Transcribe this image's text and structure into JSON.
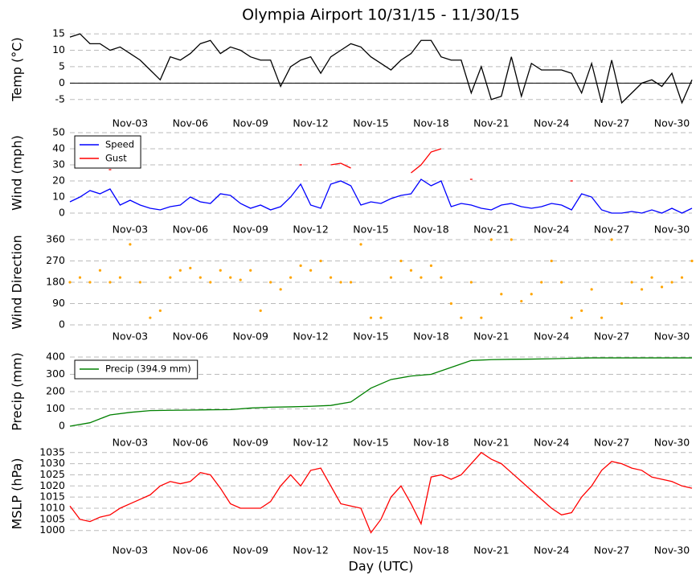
{
  "title": "Olympia Airport 10/31/15 - 11/30/15",
  "xlabel": "Day (UTC)",
  "chart_data": [
    {
      "type": "line",
      "ylabel": "Temp (°C)",
      "ylim": [
        -7.5,
        16
      ],
      "yticks": [
        -5,
        0,
        5,
        10,
        15
      ],
      "grid": true,
      "hline": 0,
      "xlim": [
        0,
        31
      ],
      "xticks": [
        {
          "value": 3,
          "label": "Nov-03"
        },
        {
          "value": 6,
          "label": "Nov-06"
        },
        {
          "value": 9,
          "label": "Nov-09"
        },
        {
          "value": 12,
          "label": "Nov-12"
        },
        {
          "value": 15,
          "label": "Nov-15"
        },
        {
          "value": 18,
          "label": "Nov-18"
        },
        {
          "value": 21,
          "label": "Nov-21"
        },
        {
          "value": 24,
          "label": "Nov-24"
        },
        {
          "value": 27,
          "label": "Nov-27"
        },
        {
          "value": 30,
          "label": "Nov-30"
        }
      ],
      "x": [
        0,
        0.5,
        1,
        1.5,
        2,
        2.5,
        3,
        3.5,
        4,
        4.5,
        5,
        5.5,
        6,
        6.5,
        7,
        7.5,
        8,
        8.5,
        9,
        9.5,
        10,
        10.5,
        11,
        11.5,
        12,
        12.5,
        13,
        13.5,
        14,
        14.5,
        15,
        15.5,
        16,
        16.5,
        17,
        17.5,
        18,
        18.5,
        19,
        19.5,
        20,
        20.5,
        21,
        21.5,
        22,
        22.5,
        23,
        23.5,
        24,
        24.5,
        25,
        25.5,
        26,
        26.5,
        27,
        27.5,
        28,
        28.5,
        29,
        29.5,
        30,
        30.5,
        31
      ],
      "series": [
        {
          "color": "#000000",
          "values": [
            14,
            15,
            12,
            12,
            10,
            11,
            9,
            7,
            4,
            1,
            8,
            7,
            9,
            12,
            13,
            9,
            11,
            10,
            8,
            7,
            7,
            -1,
            5,
            7,
            8,
            3,
            8,
            10,
            12,
            11,
            8,
            6,
            4,
            7,
            9,
            13,
            13,
            8,
            7,
            7,
            -3,
            5,
            -5,
            -4,
            8,
            -4,
            6,
            4,
            4,
            4,
            3,
            -3,
            6,
            -6,
            7,
            -6,
            -3,
            0,
            1,
            -1,
            3,
            -6,
            1
          ]
        }
      ]
    },
    {
      "type": "line",
      "ylabel": "Wind (mph)",
      "ylim": [
        0,
        50
      ],
      "yticks": [
        0,
        10,
        20,
        30,
        40,
        50
      ],
      "grid": true,
      "legend": "upper left",
      "xlim": [
        0,
        31
      ],
      "xticks": [
        {
          "value": 3,
          "label": "Nov-03"
        },
        {
          "value": 6,
          "label": "Nov-06"
        },
        {
          "value": 9,
          "label": "Nov-09"
        },
        {
          "value": 12,
          "label": "Nov-12"
        },
        {
          "value": 15,
          "label": "Nov-15"
        },
        {
          "value": 18,
          "label": "Nov-18"
        },
        {
          "value": 21,
          "label": "Nov-21"
        },
        {
          "value": 24,
          "label": "Nov-24"
        },
        {
          "value": 27,
          "label": "Nov-27"
        },
        {
          "value": 30,
          "label": "Nov-30"
        }
      ],
      "x": [
        0,
        0.5,
        1,
        1.5,
        2,
        2.5,
        3,
        3.5,
        4,
        4.5,
        5,
        5.5,
        6,
        6.5,
        7,
        7.5,
        8,
        8.5,
        9,
        9.5,
        10,
        10.5,
        11,
        11.5,
        12,
        12.5,
        13,
        13.5,
        14,
        14.5,
        15,
        15.5,
        16,
        16.5,
        17,
        17.5,
        18,
        18.5,
        19,
        19.5,
        20,
        20.5,
        21,
        21.5,
        22,
        22.5,
        23,
        23.5,
        24,
        24.5,
        25,
        25.5,
        26,
        26.5,
        27,
        27.5,
        28,
        28.5,
        29,
        29.5,
        30,
        30.5,
        31
      ],
      "series": [
        {
          "name": "Speed",
          "color": "#0000ff",
          "values": [
            7,
            10,
            14,
            12,
            15,
            5,
            8,
            5,
            3,
            2,
            4,
            5,
            10,
            7,
            6,
            12,
            11,
            6,
            3,
            5,
            2,
            4,
            10,
            18,
            5,
            3,
            18,
            20,
            17,
            5,
            7,
            6,
            9,
            11,
            12,
            21,
            17,
            20,
            4,
            6,
            5,
            3,
            2,
            5,
            6,
            4,
            3,
            4,
            6,
            5,
            2,
            12,
            10,
            2,
            0,
            0,
            1,
            0,
            2,
            0,
            3,
            0,
            3
          ]
        },
        {
          "name": "Gust",
          "color": "#ff0000",
          "values": [
            null,
            null,
            null,
            null,
            27,
            null,
            null,
            null,
            null,
            null,
            null,
            null,
            null,
            null,
            null,
            null,
            null,
            null,
            null,
            null,
            null,
            null,
            null,
            30,
            null,
            null,
            30,
            31,
            28,
            null,
            null,
            null,
            null,
            null,
            25,
            30,
            38,
            40,
            null,
            null,
            21,
            null,
            null,
            null,
            null,
            null,
            null,
            null,
            null,
            null,
            20,
            null,
            null,
            null,
            null,
            null,
            null,
            null,
            null,
            null,
            null,
            null,
            null
          ]
        }
      ]
    },
    {
      "type": "scatter",
      "ylabel": "Wind Direction",
      "ylim": [
        0,
        360
      ],
      "yticks": [
        0,
        90,
        180,
        270,
        360
      ],
      "grid": true,
      "xlim": [
        0,
        31
      ],
      "xticks": [
        {
          "value": 3,
          "label": "Nov-03"
        },
        {
          "value": 6,
          "label": "Nov-06"
        },
        {
          "value": 9,
          "label": "Nov-09"
        },
        {
          "value": 12,
          "label": "Nov-12"
        },
        {
          "value": 15,
          "label": "Nov-15"
        },
        {
          "value": 18,
          "label": "Nov-18"
        },
        {
          "value": 21,
          "label": "Nov-21"
        },
        {
          "value": 24,
          "label": "Nov-24"
        },
        {
          "value": 27,
          "label": "Nov-27"
        },
        {
          "value": 30,
          "label": "Nov-30"
        }
      ],
      "x": [
        0,
        0.5,
        1,
        1.5,
        2,
        2.5,
        3,
        3.5,
        4,
        4.5,
        5,
        5.5,
        6,
        6.5,
        7,
        7.5,
        8,
        8.5,
        9,
        9.5,
        10,
        10.5,
        11,
        11.5,
        12,
        12.5,
        13,
        13.5,
        14,
        14.5,
        15,
        15.5,
        16,
        16.5,
        17,
        17.5,
        18,
        18.5,
        19,
        19.5,
        20,
        20.5,
        21,
        21.5,
        22,
        22.5,
        23,
        23.5,
        24,
        24.5,
        25,
        25.5,
        26,
        26.5,
        27,
        27.5,
        28,
        28.5,
        29,
        29.5,
        30,
        30.5,
        31
      ],
      "series": [
        {
          "color": "#ffa500",
          "values": [
            180,
            200,
            180,
            230,
            180,
            200,
            340,
            180,
            30,
            60,
            200,
            230,
            240,
            200,
            180,
            230,
            200,
            190,
            230,
            60,
            180,
            150,
            200,
            250,
            230,
            270,
            200,
            180,
            180,
            340,
            30,
            30,
            200,
            270,
            230,
            200,
            250,
            200,
            90,
            30,
            180,
            30,
            360,
            130,
            360,
            100,
            130,
            180,
            270,
            180,
            30,
            60,
            150,
            30,
            360,
            90,
            180,
            150,
            200,
            160,
            180,
            200,
            270
          ]
        }
      ]
    },
    {
      "type": "line",
      "ylabel": "Precip (mm)",
      "ylim": [
        0,
        400
      ],
      "yticks": [
        0,
        100,
        200,
        300,
        400
      ],
      "grid": true,
      "legend": "upper left",
      "xlim": [
        0,
        31
      ],
      "xticks": [
        {
          "value": 3,
          "label": "Nov-03"
        },
        {
          "value": 6,
          "label": "Nov-06"
        },
        {
          "value": 9,
          "label": "Nov-09"
        },
        {
          "value": 12,
          "label": "Nov-12"
        },
        {
          "value": 15,
          "label": "Nov-15"
        },
        {
          "value": 18,
          "label": "Nov-18"
        },
        {
          "value": 21,
          "label": "Nov-21"
        },
        {
          "value": 24,
          "label": "Nov-24"
        },
        {
          "value": 27,
          "label": "Nov-27"
        },
        {
          "value": 30,
          "label": "Nov-30"
        }
      ],
      "x": [
        0,
        1,
        2,
        3,
        4,
        5,
        6,
        7,
        8,
        9,
        10,
        11,
        12,
        13,
        14,
        15,
        16,
        17,
        18,
        19,
        20,
        21,
        22,
        23,
        24,
        25,
        26,
        27,
        28,
        29,
        30,
        31
      ],
      "series": [
        {
          "name": "Precip (394.9 mm)",
          "color": "#008000",
          "values": [
            0,
            20,
            65,
            80,
            90,
            92,
            93,
            95,
            96,
            105,
            110,
            112,
            115,
            120,
            140,
            220,
            270,
            290,
            300,
            340,
            380,
            385,
            387,
            388,
            390,
            393,
            395,
            395,
            395,
            395,
            395,
            395
          ]
        }
      ]
    },
    {
      "type": "line",
      "ylabel": "MSLP (hPa)",
      "ylim": [
        997,
        1036
      ],
      "yticks": [
        1000,
        1005,
        1010,
        1015,
        1020,
        1025,
        1030,
        1035
      ],
      "grid": true,
      "xlim": [
        0,
        31
      ],
      "xticks": [
        {
          "value": 3,
          "label": "Nov-03"
        },
        {
          "value": 6,
          "label": "Nov-06"
        },
        {
          "value": 9,
          "label": "Nov-09"
        },
        {
          "value": 12,
          "label": "Nov-12"
        },
        {
          "value": 15,
          "label": "Nov-15"
        },
        {
          "value": 18,
          "label": "Nov-18"
        },
        {
          "value": 21,
          "label": "Nov-21"
        },
        {
          "value": 24,
          "label": "Nov-24"
        },
        {
          "value": 27,
          "label": "Nov-27"
        },
        {
          "value": 30,
          "label": "Nov-30"
        }
      ],
      "x": [
        0,
        0.5,
        1,
        1.5,
        2,
        2.5,
        3,
        3.5,
        4,
        4.5,
        5,
        5.5,
        6,
        6.5,
        7,
        7.5,
        8,
        8.5,
        9,
        9.5,
        10,
        10.5,
        11,
        11.5,
        12,
        12.5,
        13,
        13.5,
        14,
        14.5,
        15,
        15.5,
        16,
        16.5,
        17,
        17.5,
        18,
        18.5,
        19,
        19.5,
        20,
        20.5,
        21,
        21.5,
        22,
        22.5,
        23,
        23.5,
        24,
        24.5,
        25,
        25.5,
        26,
        26.5,
        27,
        27.5,
        28,
        28.5,
        29,
        29.5,
        30,
        30.5,
        31
      ],
      "series": [
        {
          "color": "#ff0000",
          "values": [
            1011,
            1005,
            1004,
            1006,
            1007,
            1010,
            1012,
            1014,
            1016,
            1020,
            1022,
            1021,
            1022,
            1026,
            1025,
            1019,
            1012,
            1010,
            1010,
            1010,
            1013,
            1020,
            1025,
            1020,
            1027,
            1028,
            1020,
            1012,
            1011,
            1010,
            999,
            1005,
            1015,
            1020,
            1012,
            1003,
            1024,
            1025,
            1023,
            1025,
            1030,
            1035,
            1032,
            1030,
            1026,
            1022,
            1018,
            1014,
            1010,
            1007,
            1008,
            1015,
            1020,
            1027,
            1031,
            1030,
            1028,
            1027,
            1024,
            1023,
            1022,
            1020,
            1019
          ]
        }
      ]
    }
  ]
}
